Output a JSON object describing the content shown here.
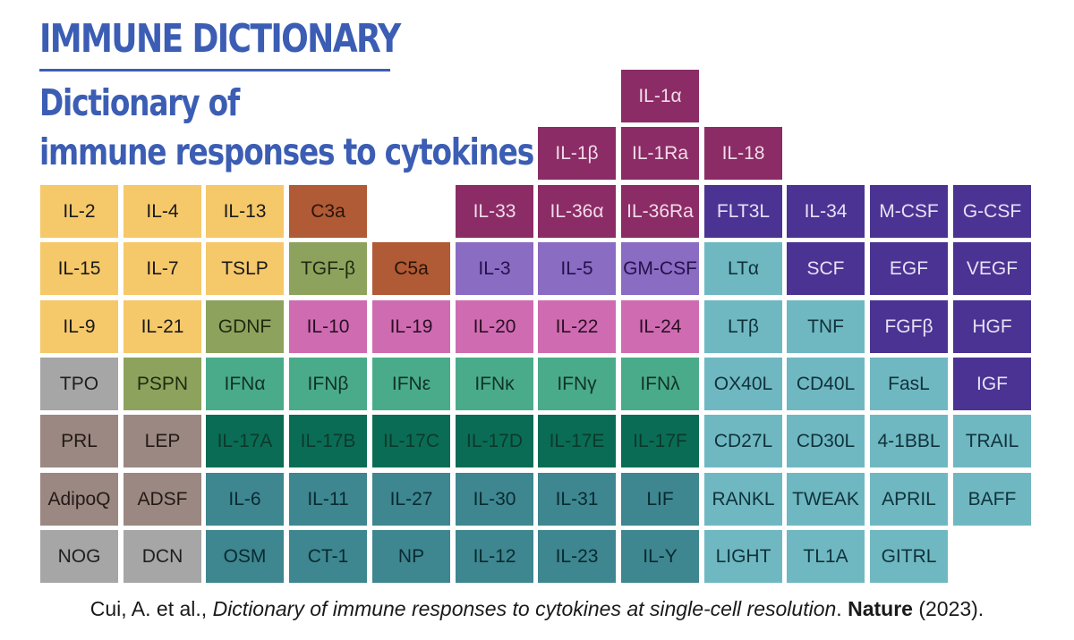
{
  "header": {
    "title": "IMMUNE DICTIONARY",
    "subtitle_line1": "Dictionary of",
    "subtitle_line2": "immune responses to cytokines"
  },
  "colors": {
    "yellow": "#f5c86a",
    "brown": "#b05a36",
    "olive": "#8da35d",
    "magenta": "#8b2c66",
    "lavender": "#8a6cc3",
    "pink": "#cf6cb1",
    "indigo": "#4b3393",
    "lightteal": "#6fb8c2",
    "gray": "#a6a6a6",
    "taupe": "#9b8882",
    "jade": "#4aab8b",
    "darkgreen": "#0b6c55",
    "steelteal": "#3e8690"
  },
  "cytokines": [
    {
      "label": "IL-1α",
      "color": "magenta"
    },
    {
      "label": "IL-1β",
      "color": "magenta"
    },
    {
      "label": "IL-1Ra",
      "color": "magenta"
    },
    {
      "label": "IL-18",
      "color": "magenta"
    },
    {
      "label": "IL-2",
      "color": "yellow"
    },
    {
      "label": "IL-4",
      "color": "yellow"
    },
    {
      "label": "IL-13",
      "color": "yellow"
    },
    {
      "label": "C3a",
      "color": "brown"
    },
    {
      "label": "IL-33",
      "color": "magenta"
    },
    {
      "label": "IL-36α",
      "color": "magenta"
    },
    {
      "label": "IL-36Ra",
      "color": "magenta"
    },
    {
      "label": "FLT3L",
      "color": "indigo"
    },
    {
      "label": "IL-34",
      "color": "indigo"
    },
    {
      "label": "M-CSF",
      "color": "indigo"
    },
    {
      "label": "G-CSF",
      "color": "indigo"
    },
    {
      "label": "IL-15",
      "color": "yellow"
    },
    {
      "label": "IL-7",
      "color": "yellow"
    },
    {
      "label": "TSLP",
      "color": "yellow"
    },
    {
      "label": "TGF-β",
      "color": "olive"
    },
    {
      "label": "C5a",
      "color": "brown"
    },
    {
      "label": "IL-3",
      "color": "lavender"
    },
    {
      "label": "IL-5",
      "color": "lavender"
    },
    {
      "label": "GM-CSF",
      "color": "lavender"
    },
    {
      "label": "LTα",
      "color": "lightteal"
    },
    {
      "label": "SCF",
      "color": "indigo"
    },
    {
      "label": "EGF",
      "color": "indigo"
    },
    {
      "label": "VEGF",
      "color": "indigo"
    },
    {
      "label": "IL-9",
      "color": "yellow"
    },
    {
      "label": "IL-21",
      "color": "yellow"
    },
    {
      "label": "GDNF",
      "color": "olive"
    },
    {
      "label": "IL-10",
      "color": "pink"
    },
    {
      "label": "IL-19",
      "color": "pink"
    },
    {
      "label": "IL-20",
      "color": "pink"
    },
    {
      "label": "IL-22",
      "color": "pink"
    },
    {
      "label": "IL-24",
      "color": "pink"
    },
    {
      "label": "LTβ",
      "color": "lightteal"
    },
    {
      "label": "TNF",
      "color": "lightteal"
    },
    {
      "label": "FGFβ",
      "color": "indigo"
    },
    {
      "label": "HGF",
      "color": "indigo"
    },
    {
      "label": "TPO",
      "color": "gray"
    },
    {
      "label": "PSPN",
      "color": "olive"
    },
    {
      "label": "IFNα",
      "color": "jade"
    },
    {
      "label": "IFNβ",
      "color": "jade"
    },
    {
      "label": "IFNε",
      "color": "jade"
    },
    {
      "label": "IFNκ",
      "color": "jade"
    },
    {
      "label": "IFNγ",
      "color": "jade"
    },
    {
      "label": "IFNλ",
      "color": "jade"
    },
    {
      "label": "OX40L",
      "color": "lightteal"
    },
    {
      "label": "CD40L",
      "color": "lightteal"
    },
    {
      "label": "FasL",
      "color": "lightteal"
    },
    {
      "label": "IGF",
      "color": "indigo"
    },
    {
      "label": "PRL",
      "color": "taupe"
    },
    {
      "label": "LEP",
      "color": "taupe"
    },
    {
      "label": "IL-17A",
      "color": "darkgreen"
    },
    {
      "label": "IL-17B",
      "color": "darkgreen"
    },
    {
      "label": "IL-17C",
      "color": "darkgreen"
    },
    {
      "label": "IL-17D",
      "color": "darkgreen"
    },
    {
      "label": "IL-17E",
      "color": "darkgreen"
    },
    {
      "label": "IL-17F",
      "color": "darkgreen"
    },
    {
      "label": "CD27L",
      "color": "lightteal"
    },
    {
      "label": "CD30L",
      "color": "lightteal"
    },
    {
      "label": "4-1BBL",
      "color": "lightteal"
    },
    {
      "label": "TRAIL",
      "color": "lightteal"
    },
    {
      "label": "AdipoQ",
      "color": "taupe"
    },
    {
      "label": "ADSF",
      "color": "taupe"
    },
    {
      "label": "IL-6",
      "color": "steelteal"
    },
    {
      "label": "IL-11",
      "color": "steelteal"
    },
    {
      "label": "IL-27",
      "color": "steelteal"
    },
    {
      "label": "IL-30",
      "color": "steelteal"
    },
    {
      "label": "IL-31",
      "color": "steelteal"
    },
    {
      "label": "LIF",
      "color": "steelteal"
    },
    {
      "label": "RANKL",
      "color": "lightteal"
    },
    {
      "label": "TWEAK",
      "color": "lightteal"
    },
    {
      "label": "APRIL",
      "color": "lightteal"
    },
    {
      "label": "BAFF",
      "color": "lightteal"
    },
    {
      "label": "NOG",
      "color": "gray"
    },
    {
      "label": "DCN",
      "color": "gray"
    },
    {
      "label": "OSM",
      "color": "steelteal"
    },
    {
      "label": "CT-1",
      "color": "steelteal"
    },
    {
      "label": "NP",
      "color": "steelteal"
    },
    {
      "label": "IL-12",
      "color": "steelteal"
    },
    {
      "label": "IL-23",
      "color": "steelteal"
    },
    {
      "label": "IL-Y",
      "color": "steelteal"
    },
    {
      "label": "LIGHT",
      "color": "lightteal"
    },
    {
      "label": "TL1A",
      "color": "lightteal"
    },
    {
      "label": "GITRL",
      "color": "lightteal"
    }
  ],
  "citation": {
    "authors": "Cui, A. et al., ",
    "article_title": "Dictionary of immune responses to cytokines at single-cell resolution",
    "separator": ". ",
    "journal": "Nature",
    "year": " (2023)."
  }
}
